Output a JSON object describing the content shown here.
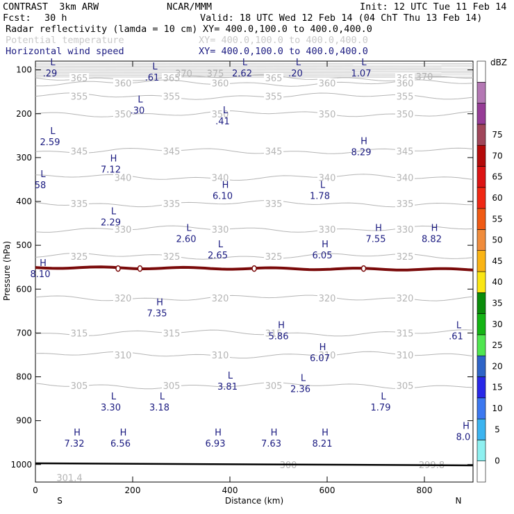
{
  "header": {
    "model": "CONTRAST  3km ARW",
    "org": "NCAR/MMM",
    "init": "Init: 12 UTC Tue 11 Feb 14",
    "fcst_label": "Fcst:",
    "fcst_value": "30 h",
    "valid": "Valid: 18 UTC Wed 12 Feb 14 (04 ChT Thu 13 Feb 14)",
    "fields": [
      {
        "name": "Radar reflectivity (lamda = 10 cm)",
        "xy": "XY= 400.0,100.0 to 400.0,400.0",
        "color": "#000000"
      },
      {
        "name": "Potential temperature",
        "xy": "XY= 400.0,100.0 to 400.0,400.0",
        "color": "#c8c8c8"
      },
      {
        "name": "Horizontal wind speed",
        "xy": "XY= 400.0,100.0 to 400.0,400.0",
        "color": "#1a1a80"
      }
    ]
  },
  "chart_data": {
    "type": "vertical-cross-section",
    "xlabel": "Distance (km)",
    "ylabel": "Pressure (hPa)",
    "xlim": [
      0,
      900
    ],
    "ylim": [
      1040,
      80
    ],
    "x_ticks": [
      "0",
      "200",
      "400",
      "600",
      "800"
    ],
    "y_ticks": [
      "100",
      "200",
      "300",
      "400",
      "500",
      "600",
      "700",
      "800",
      "900",
      "1000"
    ],
    "end_labels": {
      "left": "S",
      "right": "N"
    },
    "colorbar": {
      "title": "dBZ",
      "levels": [
        "0",
        "5",
        "10",
        "15",
        "20",
        "25",
        "30",
        "35",
        "40",
        "45",
        "50",
        "55",
        "60",
        "65",
        "70",
        "75"
      ],
      "colors": [
        "#ffffff",
        "#8ef0f0",
        "#3cb4f0",
        "#3c78f0",
        "#2828e8",
        "#2e64c8",
        "#50e650",
        "#14b414",
        "#0a8c0a",
        "#fae614",
        "#fab414",
        "#f08c3c",
        "#f05a14",
        "#f02814",
        "#dc1414",
        "#b40a0a",
        "#a0465a",
        "#963c96",
        "#b478b4",
        "#ffffff"
      ]
    },
    "theta_isentropes": [
      {
        "label": "365",
        "p": 118
      },
      {
        "label": "360",
        "p": 130
      },
      {
        "label": "355",
        "p": 160
      },
      {
        "label": "350",
        "p": 200
      },
      {
        "label": "345",
        "p": 285
      },
      {
        "label": "340",
        "p": 345
      },
      {
        "label": "335",
        "p": 405
      },
      {
        "label": "330",
        "p": 463
      },
      {
        "label": "325",
        "p": 525
      },
      {
        "label": "320",
        "p": 620
      },
      {
        "label": "315",
        "p": 700
      },
      {
        "label": "310",
        "p": 750
      },
      {
        "label": "305",
        "p": 820
      }
    ],
    "theta_extra_labels": [
      {
        "label": "370",
        "x": 305,
        "p": 108
      },
      {
        "label": "375",
        "x": 370,
        "p": 108
      },
      {
        "label": "370",
        "x": 800,
        "p": 115
      },
      {
        "label": "300",
        "x": 520,
        "p": 1000
      },
      {
        "label": "301.4",
        "x": 70,
        "p": 1030
      },
      {
        "label": "299.8",
        "x": 815,
        "p": 1000
      }
    ],
    "wind_extrema": [
      {
        "type": "L",
        "value": ".29",
        "x": 30,
        "p": 105
      },
      {
        "type": "L",
        "value": ".61",
        "x": 240,
        "p": 115
      },
      {
        "type": "L",
        "value": "2.62",
        "x": 425,
        "p": 105
      },
      {
        "type": "L",
        "value": ".20",
        "x": 535,
        "p": 105
      },
      {
        "type": "L",
        "value": "1.07",
        "x": 670,
        "p": 105
      },
      {
        "type": "L",
        "value": ".30",
        "x": 210,
        "p": 190
      },
      {
        "type": "L",
        "value": ".41",
        "x": 385,
        "p": 215
      },
      {
        "type": "L",
        "value": "2.59",
        "x": 30,
        "p": 262
      },
      {
        "type": "H",
        "value": "8.29",
        "x": 670,
        "p": 285
      },
      {
        "type": "H",
        "value": "7.12",
        "x": 155,
        "p": 325
      },
      {
        "type": "L",
        "value": "58",
        "x": 10,
        "p": 360
      },
      {
        "type": "H",
        "value": "6.10",
        "x": 385,
        "p": 385
      },
      {
        "type": "L",
        "value": "1.78",
        "x": 585,
        "p": 385
      },
      {
        "type": "L",
        "value": "2.29",
        "x": 155,
        "p": 445
      },
      {
        "type": "L",
        "value": "2.60",
        "x": 310,
        "p": 483
      },
      {
        "type": "H",
        "value": "7.55",
        "x": 700,
        "p": 483
      },
      {
        "type": "H",
        "value": "8.82",
        "x": 815,
        "p": 483
      },
      {
        "type": "L",
        "value": "2.65",
        "x": 375,
        "p": 520
      },
      {
        "type": "H",
        "value": "6.05",
        "x": 590,
        "p": 520
      },
      {
        "type": "H",
        "value": "8.10",
        "x": 10,
        "p": 563
      },
      {
        "type": "H",
        "value": "7.35",
        "x": 250,
        "p": 653
      },
      {
        "type": "H",
        "value": "5.86",
        "x": 500,
        "p": 705
      },
      {
        "type": "L",
        "value": ".61",
        "x": 865,
        "p": 705
      },
      {
        "type": "H",
        "value": "6.07",
        "x": 585,
        "p": 755
      },
      {
        "type": "L",
        "value": "3.81",
        "x": 395,
        "p": 820
      },
      {
        "type": "L",
        "value": "2.36",
        "x": 545,
        "p": 825
      },
      {
        "type": "L",
        "value": "3.30",
        "x": 155,
        "p": 867
      },
      {
        "type": "L",
        "value": "3.18",
        "x": 255,
        "p": 867
      },
      {
        "type": "L",
        "value": "1.79",
        "x": 710,
        "p": 867
      },
      {
        "type": "H",
        "value": "7.32",
        "x": 80,
        "p": 950
      },
      {
        "type": "H",
        "value": "6.56",
        "x": 175,
        "p": 950
      },
      {
        "type": "H",
        "value": "6.93",
        "x": 370,
        "p": 950
      },
      {
        "type": "H",
        "value": "7.63",
        "x": 485,
        "p": 950
      },
      {
        "type": "H",
        "value": "8.21",
        "x": 590,
        "p": 950
      },
      {
        "type": "H",
        "value": "8.0",
        "x": 880,
        "p": 935
      }
    ],
    "reflectivity_band": {
      "p": 553,
      "dbz": 60
    }
  }
}
